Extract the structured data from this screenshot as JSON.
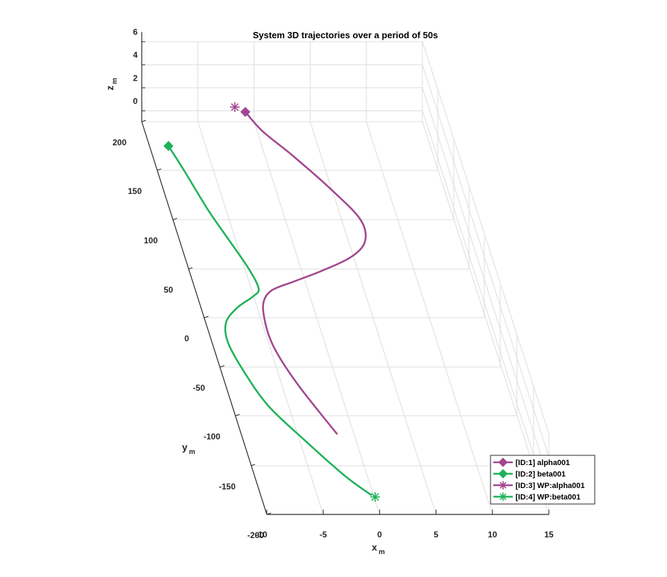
{
  "chart_data": {
    "type": "line",
    "title": "System 3D trajectories over a period of 50s",
    "xlabel": "x",
    "xlabel_sub": "m",
    "ylabel": "y",
    "ylabel_sub": "m",
    "zlabel": "z",
    "zlabel_sub": "m",
    "xlim": [
      -10,
      15
    ],
    "ylim": [
      -180,
      210
    ],
    "zlim": [
      -1,
      6
    ],
    "x_ticks": [
      "-10",
      "-5",
      "0",
      "5",
      "10",
      "15"
    ],
    "y_ticks": [
      "-200",
      "-150",
      "-100",
      "-50",
      "0",
      "50",
      "100",
      "150",
      "200"
    ],
    "z_ticks": [
      "0",
      "2",
      "4",
      "6"
    ],
    "grid": true,
    "legend_position": "bottom-right",
    "colors": {
      "alpha": "#A2478F",
      "beta": "#1FB25A"
    },
    "series": [
      {
        "name": "[ID:1] alpha001",
        "color": "#A2478F",
        "marker": "diamond",
        "points": [
          [
            -1.5,
            -118
          ],
          [
            -2.5,
            -95
          ],
          [
            -3.5,
            -70
          ],
          [
            -4.3,
            -45
          ],
          [
            -4.7,
            -25
          ],
          [
            -4.7,
            -5
          ],
          [
            -4.3,
            15
          ],
          [
            -3.2,
            28
          ],
          [
            -1.0,
            37
          ],
          [
            1.8,
            48
          ],
          [
            4.8,
            62
          ],
          [
            6.5,
            78
          ],
          [
            6.7,
            100
          ],
          [
            5.0,
            130
          ],
          [
            2.5,
            165
          ],
          [
            0.5,
            190
          ],
          [
            -0.5,
            210
          ]
        ]
      },
      {
        "name": "[ID:2] beta001",
        "color": "#1FB25A",
        "marker": "diamond",
        "points": [
          [
            -0.2,
            -180
          ],
          [
            -2.0,
            -160
          ],
          [
            -4.5,
            -125
          ],
          [
            -6.8,
            -90
          ],
          [
            -8.0,
            -55
          ],
          [
            -8.6,
            -25
          ],
          [
            -8.2,
            -5
          ],
          [
            -6.8,
            10
          ],
          [
            -5.0,
            22
          ],
          [
            -4.3,
            30
          ],
          [
            -4.6,
            50
          ],
          [
            -5.6,
            80
          ],
          [
            -6.6,
            110
          ],
          [
            -7.6,
            150
          ],
          [
            -8.3,
            175
          ]
        ]
      },
      {
        "name": "[ID:3] WP:alpha001",
        "color": "#A2478F",
        "marker": "asterisk",
        "points": [
          [
            -1.3,
            215
          ]
        ]
      },
      {
        "name": "[ID:4] WP:beta001",
        "color": "#1FB25A",
        "marker": "asterisk",
        "points": [
          [
            0.1,
            -182
          ]
        ]
      }
    ]
  }
}
